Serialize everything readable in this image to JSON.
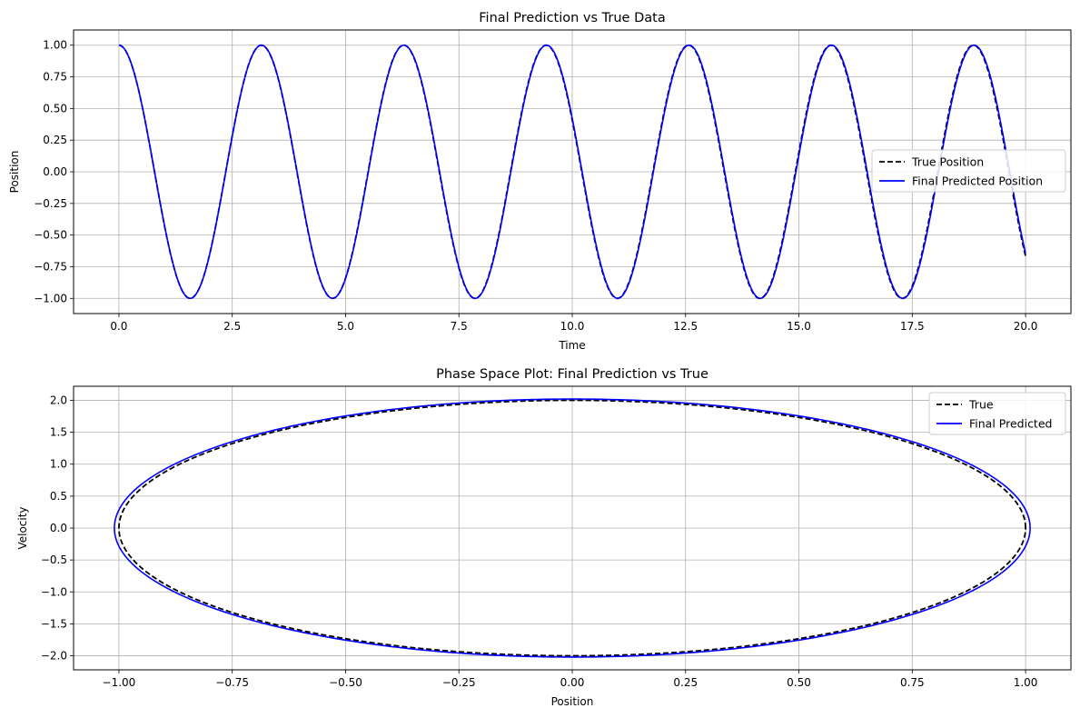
{
  "chart_data": [
    {
      "type": "line",
      "title": "Final Prediction vs True Data",
      "xlabel": "Time",
      "ylabel": "Position",
      "xlim": [
        -1.0,
        21.0
      ],
      "ylim": [
        -1.12,
        1.12
      ],
      "xticks": [
        0.0,
        2.5,
        5.0,
        7.5,
        10.0,
        12.5,
        15.0,
        17.5,
        20.0
      ],
      "xtick_labels": [
        "0.0",
        "2.5",
        "5.0",
        "7.5",
        "10.0",
        "12.5",
        "15.0",
        "17.5",
        "20.0"
      ],
      "yticks": [
        -1.0,
        -0.75,
        -0.5,
        -0.25,
        0.0,
        0.25,
        0.5,
        0.75,
        1.0
      ],
      "ytick_labels": [
        "−1.00",
        "−0.75",
        "−0.50",
        "−0.25",
        "0.00",
        "0.25",
        "0.50",
        "0.75",
        "1.00"
      ],
      "grid": true,
      "legend_position": "center-right",
      "series": [
        {
          "name": "True Position",
          "color": "#000000",
          "style": "dashed",
          "x_range": [
            0,
            20
          ],
          "formula": "cos(2*t)"
        },
        {
          "name": "Final Predicted Position",
          "color": "#0000ff",
          "style": "solid",
          "x_range": [
            0,
            20
          ],
          "formula": "cos(1.9985*t)"
        }
      ]
    },
    {
      "type": "line",
      "title": "Phase Space Plot: Final Prediction vs True",
      "xlabel": "Position",
      "ylabel": "Velocity",
      "xlim": [
        -1.1,
        1.1
      ],
      "ylim": [
        -2.22,
        2.22
      ],
      "xticks": [
        -1.0,
        -0.75,
        -0.5,
        -0.25,
        0.0,
        0.25,
        0.5,
        0.75,
        1.0
      ],
      "xtick_labels": [
        "−1.00",
        "−0.75",
        "−0.50",
        "−0.25",
        "0.00",
        "0.25",
        "0.50",
        "0.75",
        "1.00"
      ],
      "yticks": [
        -2.0,
        -1.5,
        -1.0,
        -0.5,
        0.0,
        0.5,
        1.0,
        1.5,
        2.0
      ],
      "ytick_labels": [
        "−2.0",
        "−1.5",
        "−1.0",
        "−0.5",
        "0.0",
        "0.5",
        "1.0",
        "1.5",
        "2.0"
      ],
      "grid": true,
      "legend_position": "upper-right",
      "series": [
        {
          "name": "True",
          "color": "#000000",
          "style": "dashed",
          "shape": "ellipse",
          "x_radius": 1.0,
          "y_radius": 2.0
        },
        {
          "name": "Final Predicted",
          "color": "#0000ff",
          "style": "solid",
          "shape": "ellipse",
          "x_radius": 1.01,
          "y_radius": 2.02
        }
      ]
    }
  ]
}
